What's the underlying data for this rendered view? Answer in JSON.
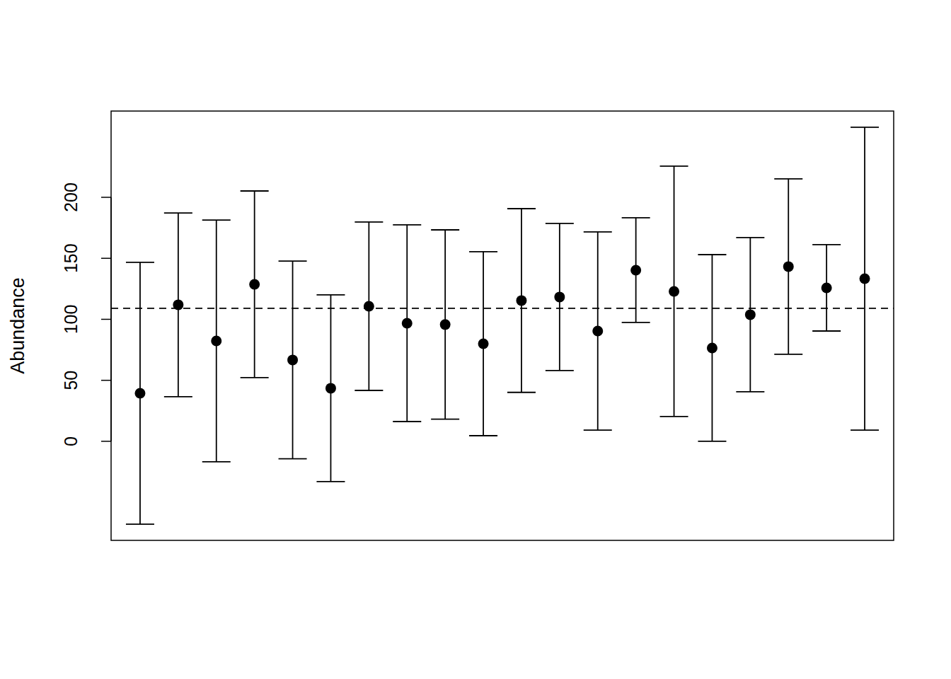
{
  "chart_data": {
    "type": "errorbar",
    "y_label": "Abundance",
    "x": [
      1,
      2,
      3,
      4,
      5,
      6,
      7,
      8,
      9,
      10,
      11,
      12,
      13,
      14,
      15,
      16,
      17,
      18,
      19,
      20
    ],
    "values": [
      39.4,
      111.9,
      82.3,
      128.7,
      66.7,
      43.5,
      110.7,
      96.8,
      95.7,
      80.0,
      115.4,
      118.3,
      90.4,
      140.3,
      122.9,
      76.5,
      103.8,
      143.2,
      125.8,
      133.3
    ],
    "errors": [
      107.3,
      75.3,
      99.1,
      76.5,
      81.0,
      76.5,
      69.0,
      80.6,
      77.6,
      75.4,
      75.3,
      60.3,
      81.2,
      42.9,
      102.6,
      76.5,
      63.2,
      71.9,
      35.4,
      124.1
    ],
    "reference_line": 109,
    "xlim": [
      0.24,
      20.76
    ],
    "ylim": [
      -81.2,
      270.7
    ],
    "yticks": [
      0,
      50,
      100,
      150,
      200
    ],
    "tick_labels": "y",
    "color": "#000000",
    "marker": "circle",
    "line_style": "dashed",
    "grid": false
  }
}
